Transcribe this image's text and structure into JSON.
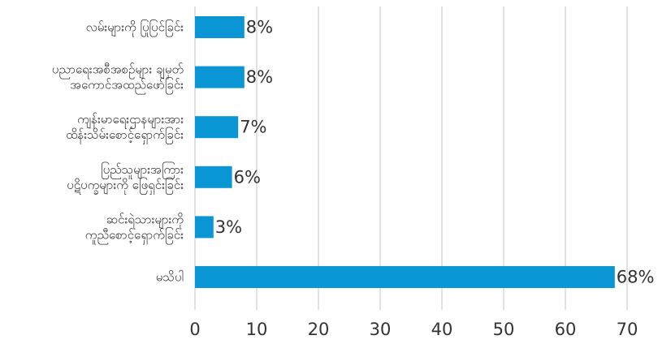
{
  "chart_data": {
    "type": "bar",
    "orientation": "horizontal",
    "title": "",
    "xlabel": "",
    "ylabel": "",
    "categories": [
      [
        "လမ်းများကို ပြုပြင်ခြင်း"
      ],
      [
        "ပညာရေးအစီအစဉ်များ ချမှတ်",
        "အကောင်အထည်ဖော်ခြင်း"
      ],
      [
        "ကျန်းမာရေးဌာနများအား",
        "ထိန်းသိမ်းစောင့်ရှောက်ခြင်း"
      ],
      [
        "ပြည်သူများအကြား",
        "ပဋိပက္ခများကို ဖြေရှင်းခြင်း"
      ],
      [
        "ဆင်းရဲသားများကို",
        "ကူညီစောင့်ရှောက်ခြင်း"
      ],
      [
        "မသိပါ"
      ]
    ],
    "values": [
      8,
      8,
      7,
      6,
      3,
      68
    ],
    "value_labels": [
      "8%",
      "8%",
      "7%",
      "6%",
      "3%",
      "68%"
    ],
    "xlim": [
      0,
      70
    ],
    "xticks": [
      "0",
      "10",
      "20",
      "30",
      "40",
      "50",
      "60",
      "70"
    ],
    "grid": true,
    "bar_color": "#0a96d4",
    "grid_color": "#cfcfcf"
  }
}
